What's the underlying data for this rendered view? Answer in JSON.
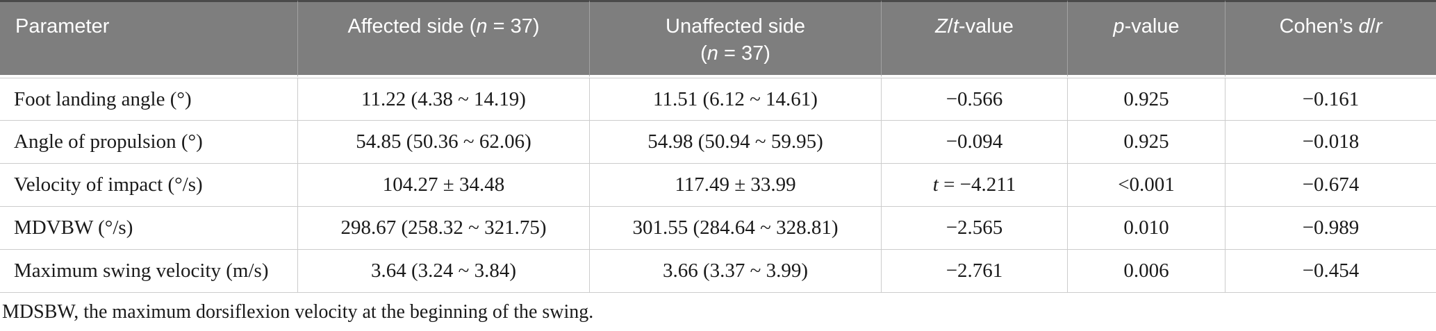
{
  "colors": {
    "header_background": "#7e7e7e",
    "header_text": "#ffffff",
    "body_text": "#1a1a1a",
    "grid_line": "#cccccc",
    "top_rule": "#4a4a4a"
  },
  "table": {
    "header": [
      {
        "segments": [
          {
            "text": "Parameter"
          }
        ]
      },
      {
        "segments": [
          {
            "text": "Affected side ("
          },
          {
            "text": "n",
            "italic": true
          },
          {
            "text": " = 37)"
          }
        ]
      },
      {
        "segments": [
          {
            "text": "Unaffected side\n("
          },
          {
            "text": "n",
            "italic": true
          },
          {
            "text": " = 37)"
          }
        ]
      },
      {
        "segments": [
          {
            "text": "Z",
            "italic": true
          },
          {
            "text": "/"
          },
          {
            "text": "t",
            "italic": true
          },
          {
            "text": "-value"
          }
        ]
      },
      {
        "segments": [
          {
            "text": "p",
            "italic": true
          },
          {
            "text": "-value"
          }
        ]
      },
      {
        "segments": [
          {
            "text": "Cohen’s "
          },
          {
            "text": "d",
            "italic": true
          },
          {
            "text": "/"
          },
          {
            "text": "r",
            "italic": true
          }
        ]
      }
    ],
    "rows": [
      {
        "parameter": [
          {
            "text": "Foot landing angle (°)"
          }
        ],
        "affected": [
          {
            "text": "11.22 (4.38 ~ 14.19)"
          }
        ],
        "unaffected": [
          {
            "text": "11.51 (6.12 ~ 14.61)"
          }
        ],
        "zt": [
          {
            "text": "−0.566"
          }
        ],
        "p": [
          {
            "text": "0.925"
          }
        ],
        "effect": [
          {
            "text": "−0.161"
          }
        ]
      },
      {
        "parameter": [
          {
            "text": "Angle of propulsion (°)"
          }
        ],
        "affected": [
          {
            "text": "54.85 (50.36 ~ 62.06)"
          }
        ],
        "unaffected": [
          {
            "text": "54.98 (50.94 ~ 59.95)"
          }
        ],
        "zt": [
          {
            "text": "−0.094"
          }
        ],
        "p": [
          {
            "text": "0.925"
          }
        ],
        "effect": [
          {
            "text": "−0.018"
          }
        ]
      },
      {
        "parameter": [
          {
            "text": "Velocity of impact (°/s)"
          }
        ],
        "affected": [
          {
            "text": "104.27 ± 34.48"
          }
        ],
        "unaffected": [
          {
            "text": "117.49 ± 33.99"
          }
        ],
        "zt": [
          {
            "text": "t",
            "italic": true
          },
          {
            "text": " = −4.211"
          }
        ],
        "p": [
          {
            "text": "<0.001"
          }
        ],
        "effect": [
          {
            "text": "−0.674"
          }
        ]
      },
      {
        "parameter": [
          {
            "text": "MDVBW (°/s)"
          }
        ],
        "affected": [
          {
            "text": "298.67 (258.32 ~ 321.75)"
          }
        ],
        "unaffected": [
          {
            "text": "301.55 (284.64 ~ 328.81)"
          }
        ],
        "zt": [
          {
            "text": "−2.565"
          }
        ],
        "p": [
          {
            "text": "0.010"
          }
        ],
        "effect": [
          {
            "text": "−0.989"
          }
        ]
      },
      {
        "parameter": [
          {
            "text": "Maximum swing velocity (m/s)"
          }
        ],
        "affected": [
          {
            "text": "3.64 (3.24 ~ 3.84)"
          }
        ],
        "unaffected": [
          {
            "text": "3.66 (3.37 ~ 3.99)"
          }
        ],
        "zt": [
          {
            "text": "−2.761"
          }
        ],
        "p": [
          {
            "text": "0.006"
          }
        ],
        "effect": [
          {
            "text": "−0.454"
          }
        ]
      }
    ],
    "footnote": "MDSBW, the maximum dorsiflexion velocity at the beginning of the swing."
  }
}
